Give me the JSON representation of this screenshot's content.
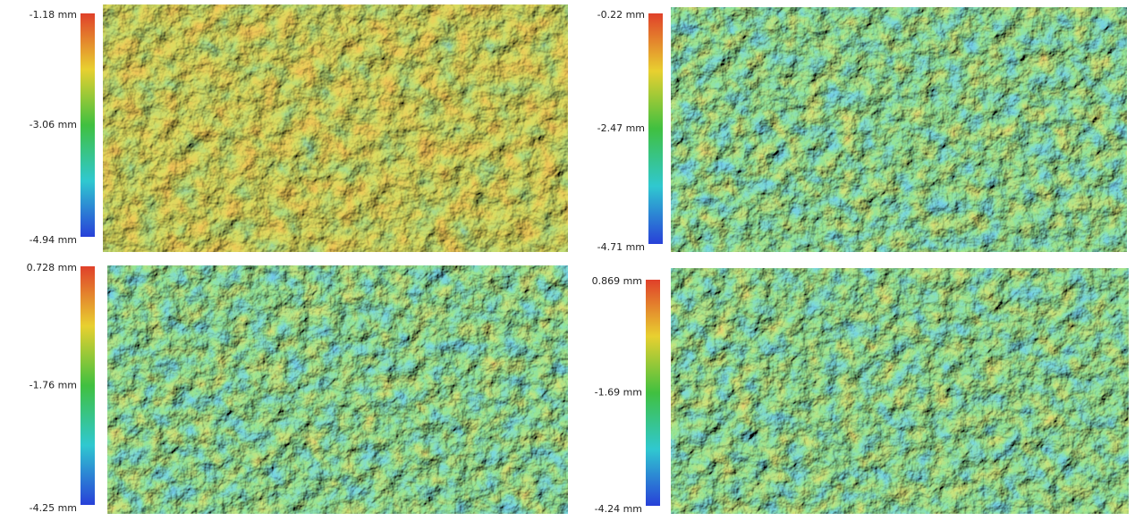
{
  "panels": [
    {
      "scale": {
        "max": "-1.18 mm",
        "mid": "-3.06 mm",
        "min": "-4.94 mm"
      }
    },
    {
      "scale": {
        "max": "-0.22 mm",
        "mid": "-2.47 mm",
        "min": "-4.71 mm"
      }
    },
    {
      "scale": {
        "max": "0.728 mm",
        "mid": "-1.76 mm",
        "min": "-4.25 mm"
      }
    },
    {
      "scale": {
        "max": "0.869 mm",
        "mid": "-1.69 mm",
        "min": "-4.24 mm"
      }
    }
  ]
}
